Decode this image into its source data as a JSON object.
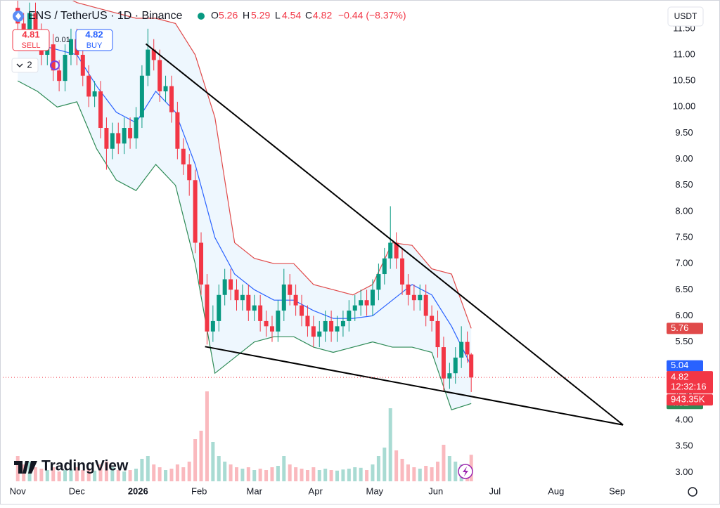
{
  "header": {
    "symbol": "ENS / TetherUS · 1D · Binance",
    "o": "O",
    "h": "H",
    "l": "L",
    "c": "C",
    "change": "−0.44 (−8.37%)",
    "sell_price": 4.81,
    "sell": "SELL",
    "spread": 0.01,
    "buy_price": 4.82,
    "buy": "BUY",
    "indicators": "2",
    "currency": "USDT",
    "countdown": "12:32:16",
    "volume_label": "943.35K",
    "logo": "TradingView"
  },
  "chart_data": {
    "type": "candlestick",
    "x": [
      0,
      3,
      6,
      9,
      12,
      15,
      18,
      21,
      24,
      27,
      30,
      33,
      36,
      39,
      42,
      45,
      48,
      51,
      54,
      57,
      60,
      63,
      66,
      69,
      72,
      75,
      78,
      81,
      84,
      87,
      90,
      93,
      96,
      99,
      102,
      105,
      108,
      111,
      114,
      117,
      120,
      123,
      126,
      129,
      132,
      135,
      138,
      141,
      144,
      147,
      150,
      153,
      156,
      159,
      162,
      165,
      168,
      171,
      174,
      177,
      180,
      183,
      186,
      189,
      192,
      195,
      198,
      201,
      204,
      207,
      210,
      213,
      216,
      219,
      222,
      225,
      228,
      230
    ],
    "open": [
      11.9,
      11.6,
      11.3,
      11.8,
      11.4,
      11.0,
      11.2,
      10.7,
      10.5,
      11.0,
      11.3,
      11.0,
      10.6,
      10.2,
      10.3,
      9.6,
      9.2,
      9.5,
      9.3,
      9.6,
      9.4,
      9.8,
      10.6,
      11.1,
      10.9,
      10.3,
      10.4,
      9.9,
      9.2,
      8.9,
      8.6,
      7.4,
      6.6,
      5.7,
      5.9,
      6.4,
      6.7,
      6.5,
      6.3,
      6.4,
      6.1,
      6.2,
      5.9,
      5.8,
      5.7,
      6.1,
      6.6,
      6.4,
      6.2,
      6.0,
      5.8,
      5.6,
      5.7,
      5.9,
      5.7,
      5.8,
      5.9,
      6.1,
      6.2,
      6.3,
      6.2,
      6.5,
      6.8,
      7.1,
      7.4,
      7.1,
      6.6,
      6.4,
      6.3,
      6.4,
      6.0,
      5.9,
      5.4,
      4.8,
      4.9,
      5.2,
      5.5,
      5.26
    ],
    "high": [
      12.1,
      11.8,
      12.0,
      12.0,
      11.6,
      11.4,
      11.4,
      10.9,
      11.2,
      11.5,
      11.5,
      11.2,
      10.8,
      10.5,
      10.5,
      9.8,
      9.7,
      9.7,
      9.8,
      9.8,
      10.0,
      10.8,
      11.5,
      11.3,
      11.1,
      10.6,
      10.6,
      10.1,
      9.4,
      9.1,
      8.8,
      7.6,
      6.8,
      6.2,
      6.6,
      6.9,
      6.9,
      6.7,
      6.6,
      6.6,
      6.4,
      6.4,
      6.1,
      6.0,
      6.3,
      6.9,
      6.8,
      6.6,
      6.4,
      6.2,
      6.0,
      5.9,
      6.1,
      6.1,
      6.0,
      6.1,
      6.3,
      6.4,
      6.5,
      6.5,
      6.7,
      7.0,
      7.3,
      8.1,
      7.6,
      7.3,
      6.8,
      6.6,
      6.6,
      6.6,
      6.2,
      6.1,
      5.6,
      5.1,
      5.4,
      5.8,
      5.7,
      5.29
    ],
    "low": [
      11.4,
      11.1,
      11.1,
      11.2,
      10.8,
      10.8,
      10.5,
      10.3,
      10.3,
      10.8,
      10.8,
      10.4,
      10.0,
      10.0,
      9.4,
      8.8,
      9.0,
      9.1,
      9.1,
      9.2,
      9.2,
      9.6,
      10.4,
      10.7,
      10.1,
      10.1,
      9.7,
      9.0,
      8.7,
      8.3,
      7.2,
      6.4,
      5.45,
      5.5,
      5.7,
      6.2,
      6.3,
      6.1,
      6.1,
      5.9,
      5.9,
      5.7,
      5.6,
      5.5,
      5.5,
      5.9,
      6.2,
      6.0,
      5.8,
      5.6,
      5.4,
      5.4,
      5.5,
      5.5,
      5.5,
      5.6,
      5.7,
      5.9,
      6.0,
      6.0,
      6.0,
      6.3,
      6.6,
      6.9,
      6.9,
      6.4,
      6.2,
      6.1,
      6.1,
      5.8,
      5.7,
      5.2,
      4.55,
      4.6,
      4.7,
      5.0,
      5.1,
      4.54
    ],
    "close": [
      11.6,
      11.3,
      11.8,
      11.4,
      11.0,
      11.2,
      10.7,
      10.5,
      11.0,
      11.3,
      11.0,
      10.6,
      10.2,
      10.3,
      9.6,
      9.2,
      9.5,
      9.3,
      9.6,
      9.4,
      9.8,
      10.6,
      11.1,
      10.9,
      10.3,
      10.4,
      9.9,
      9.2,
      8.9,
      8.6,
      7.4,
      6.6,
      5.7,
      5.9,
      6.4,
      6.7,
      6.5,
      6.3,
      6.4,
      6.1,
      6.2,
      5.9,
      5.8,
      5.7,
      6.1,
      6.6,
      6.4,
      6.2,
      6.0,
      5.8,
      5.6,
      5.7,
      5.9,
      5.7,
      5.8,
      5.9,
      6.1,
      6.2,
      6.3,
      6.2,
      6.5,
      6.8,
      7.1,
      7.4,
      7.1,
      6.6,
      6.4,
      6.3,
      6.4,
      6.0,
      5.9,
      5.4,
      4.8,
      4.9,
      5.2,
      5.5,
      5.26,
      4.82
    ],
    "volume": [
      900,
      600,
      700,
      500,
      450,
      400,
      500,
      350,
      400,
      450,
      500,
      400,
      450,
      380,
      600,
      700,
      500,
      400,
      350,
      400,
      450,
      800,
      900,
      600,
      500,
      400,
      450,
      600,
      500,
      700,
      1500,
      1800,
      3200,
      1400,
      900,
      700,
      600,
      500,
      450,
      500,
      400,
      450,
      400,
      500,
      550,
      900,
      600,
      500,
      450,
      400,
      500,
      400,
      450,
      400,
      380,
      420,
      450,
      500,
      480,
      400,
      600,
      900,
      1200,
      2600,
      1100,
      800,
      600,
      500,
      450,
      550,
      500,
      700,
      1300,
      900,
      700,
      600,
      500,
      943.35
    ],
    "up_color": "#089981",
    "down_color": "#f23645",
    "bands": {
      "x": [
        0,
        10,
        20,
        30,
        40,
        50,
        60,
        70,
        80,
        90,
        100,
        110,
        120,
        130,
        140,
        150,
        160,
        170,
        180,
        190,
        200,
        210,
        220,
        230
      ],
      "upper": [
        12.4,
        12.3,
        12.2,
        12.0,
        11.9,
        11.8,
        11.7,
        11.7,
        11.6,
        11.0,
        9.8,
        7.4,
        7.1,
        7.0,
        7.0,
        6.6,
        6.5,
        6.4,
        6.6,
        7.4,
        7.35,
        6.9,
        6.8,
        5.76
      ],
      "mid": [
        11.4,
        11.2,
        11.1,
        11.0,
        10.4,
        9.9,
        9.7,
        10.3,
        9.9,
        8.9,
        7.5,
        6.8,
        6.5,
        6.3,
        6.3,
        6.1,
        5.95,
        5.95,
        6.0,
        6.3,
        6.6,
        6.4,
        5.8,
        5.04
      ],
      "lower": [
        10.5,
        10.3,
        10.0,
        10.1,
        9.2,
        8.6,
        8.4,
        8.9,
        8.5,
        7.0,
        4.9,
        5.2,
        5.5,
        5.6,
        5.6,
        5.4,
        5.3,
        5.4,
        5.5,
        5.4,
        5.4,
        5.3,
        4.2,
        4.32
      ],
      "upper_color": "#e04a4a",
      "mid_color": "#2962ff",
      "lower_color": "#2e8b57",
      "fill_color": "#2196f3"
    },
    "trendlines": [
      {
        "x": [
          65,
          307
        ],
        "y": [
          11.21,
          3.91
        ]
      },
      {
        "x": [
          95,
          307
        ],
        "y": [
          5.41,
          3.91
        ]
      }
    ],
    "xlim": [
      -9,
      328
    ],
    "ylim": [
      2.83,
      12.05
    ],
    "xticks": [
      {
        "value": 0,
        "label": "Nov"
      },
      {
        "value": 30,
        "label": "Dec"
      },
      {
        "value": 61,
        "label": "2026"
      },
      {
        "value": 92,
        "label": "Feb"
      },
      {
        "value": 120,
        "label": "Mar"
      },
      {
        "value": 151,
        "label": "Apr"
      },
      {
        "value": 181,
        "label": "May"
      },
      {
        "value": 212,
        "label": "Jun"
      },
      {
        "value": 242,
        "label": "Jul"
      },
      {
        "value": 273,
        "label": "Aug"
      },
      {
        "value": 304,
        "label": "Sep"
      }
    ],
    "yticks": [
      {
        "value": 3,
        "label": "3.00"
      },
      {
        "value": 3.5,
        "label": "3.50"
      },
      {
        "value": 4,
        "label": "4.00"
      },
      {
        "value": 4.5,
        "label": "4.50"
      },
      {
        "value": 5,
        "label": "5.00"
      },
      {
        "value": 5.5,
        "label": "5.50"
      },
      {
        "value": 6,
        "label": "6.00"
      },
      {
        "value": 6.5,
        "label": "6.50"
      },
      {
        "value": 7,
        "label": "7.00"
      },
      {
        "value": 7.5,
        "label": "7.50"
      },
      {
        "value": 8,
        "label": "8.00"
      },
      {
        "value": 8.5,
        "label": "8.50"
      },
      {
        "value": 9,
        "label": "9.00"
      },
      {
        "value": 9.5,
        "label": "9.50"
      },
      {
        "value": 10,
        "label": "10.00"
      },
      {
        "value": 10.5,
        "label": "10.50"
      },
      {
        "value": 11,
        "label": "11.00"
      },
      {
        "value": 11.5,
        "label": "11.50"
      }
    ]
  }
}
